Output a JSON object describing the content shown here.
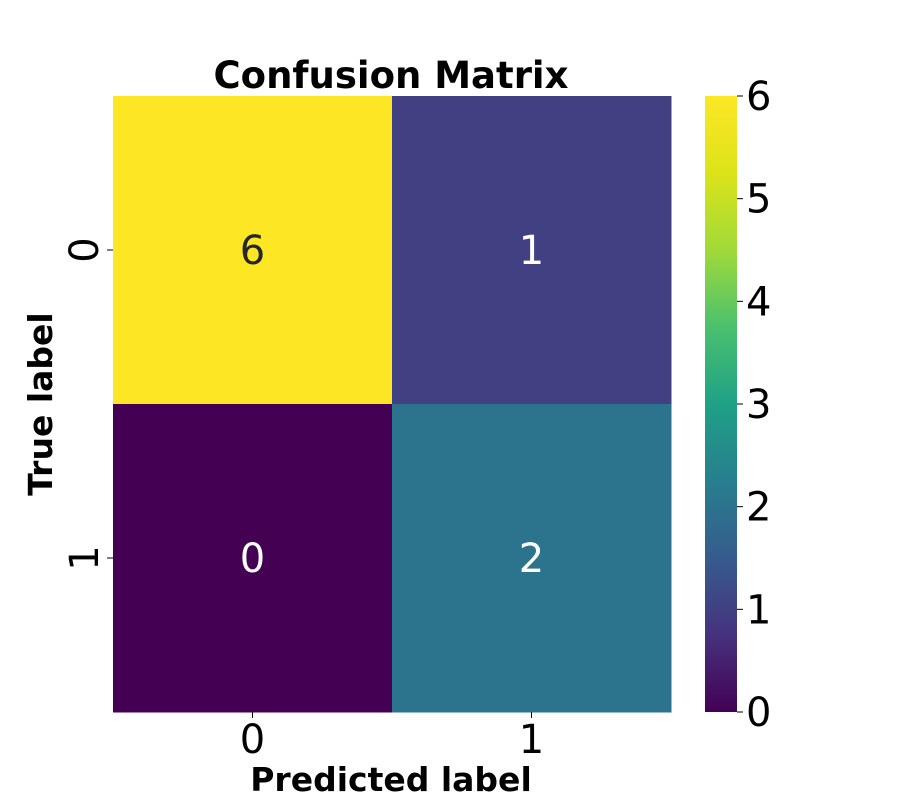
{
  "chart_data": {
    "type": "heatmap",
    "title": "Confusion Matrix",
    "xlabel": "Predicted label",
    "ylabel": "True label",
    "x_categories": [
      "0",
      "1"
    ],
    "y_categories": [
      "0",
      "1"
    ],
    "values": [
      [
        6,
        1
      ],
      [
        0,
        2
      ]
    ],
    "annotations": [
      "6",
      "1",
      "0",
      "2"
    ],
    "colormap": "viridis",
    "vmin": 0,
    "vmax": 6,
    "colorbar_ticks": [
      "0",
      "1",
      "2",
      "3",
      "4",
      "5",
      "6"
    ],
    "grid": false,
    "colors": {
      "low": "#440154",
      "high": "#fde725",
      "annotation_dark": "#262626",
      "annotation_light": "#ffffff"
    }
  }
}
